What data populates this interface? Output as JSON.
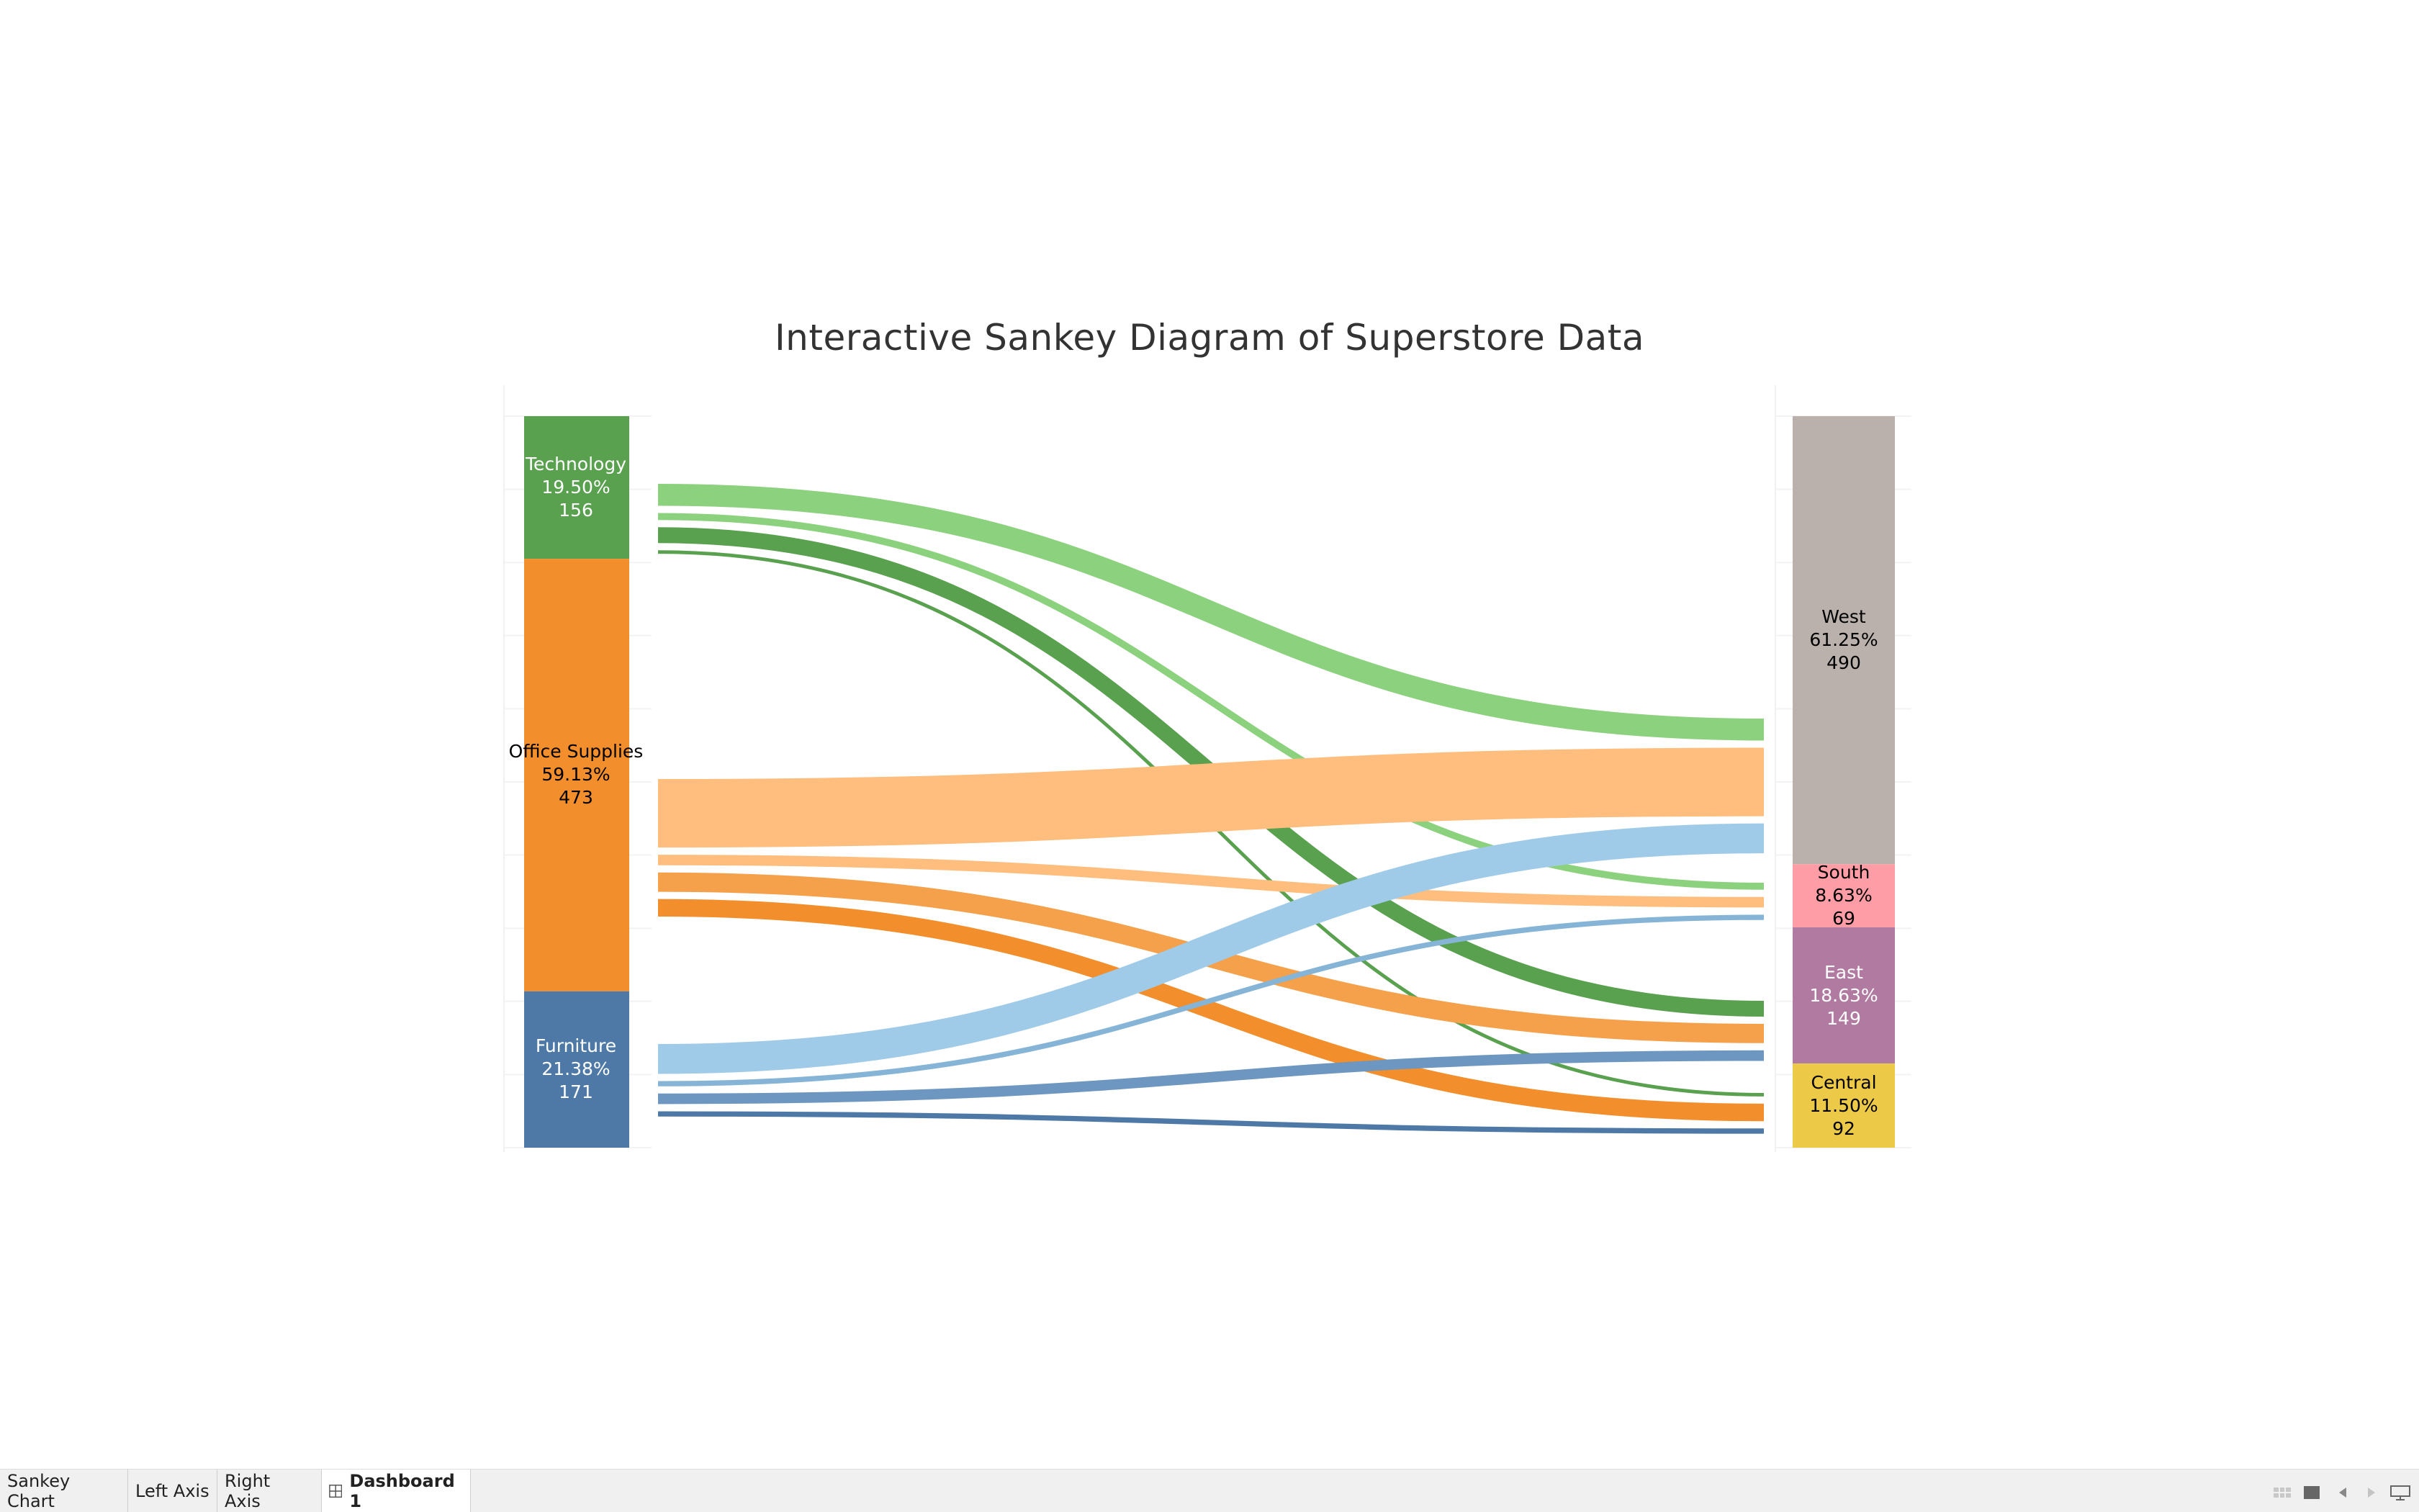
{
  "dashboard": {
    "title": "Interactive Sankey Diagram of Superstore Data"
  },
  "chart_data": {
    "type": "sankey",
    "title": "Interactive Sankey Diagram of Superstore Data",
    "left_nodes": [
      {
        "key": "technology",
        "name": "Technology",
        "percent": "19.50%",
        "count": "156",
        "value": 156,
        "color": "#59a14f",
        "text_color": "#ffffff"
      },
      {
        "key": "office_supplies",
        "name": "Office Supplies",
        "percent": "59.13%",
        "count": "473",
        "value": 473,
        "color": "#f28e2b",
        "text_color": "#000000"
      },
      {
        "key": "furniture",
        "name": "Furniture",
        "percent": "21.38%",
        "count": "171",
        "value": 171,
        "color": "#4e79a7",
        "text_color": "#ffffff"
      }
    ],
    "right_nodes": [
      {
        "key": "west",
        "name": "West",
        "percent": "61.25%",
        "count": "490",
        "value": 490,
        "color": "#bab0ac",
        "text_color": "#000000"
      },
      {
        "key": "south",
        "name": "South",
        "percent": "8.63%",
        "count": "69",
        "value": 69,
        "color": "#ff9da7",
        "text_color": "#000000"
      },
      {
        "key": "east",
        "name": "East",
        "percent": "18.63%",
        "count": "149",
        "value": 149,
        "color": "#b07aa1",
        "text_color": "#ffffff"
      },
      {
        "key": "central",
        "name": "Central",
        "percent": "11.50%",
        "count": "92",
        "value": 92,
        "color": "#edc948",
        "text_color": "#000000"
      }
    ],
    "flows": [
      {
        "source": "technology",
        "target": "west",
        "value": 25,
        "color": "#8cd17d"
      },
      {
        "source": "technology",
        "target": "south",
        "value": 8,
        "color": "#8cd17d"
      },
      {
        "source": "technology",
        "target": "east",
        "value": 18,
        "color": "#59a14f"
      },
      {
        "source": "technology",
        "target": "central",
        "value": 4,
        "color": "#59a14f"
      },
      {
        "source": "office_supplies",
        "target": "west",
        "value": 78,
        "color": "#ffbe7d"
      },
      {
        "source": "office_supplies",
        "target": "south",
        "value": 12,
        "color": "#ffbe7d"
      },
      {
        "source": "office_supplies",
        "target": "east",
        "value": 22,
        "color": "#f5a04a"
      },
      {
        "source": "office_supplies",
        "target": "central",
        "value": 20,
        "color": "#f28e2b"
      },
      {
        "source": "furniture",
        "target": "west",
        "value": 34,
        "color": "#a0cbe8"
      },
      {
        "source": "furniture",
        "target": "south",
        "value": 6,
        "color": "#86b4d6"
      },
      {
        "source": "furniture",
        "target": "east",
        "value": 12,
        "color": "#6d97c0"
      },
      {
        "source": "furniture",
        "target": "central",
        "value": 6,
        "color": "#4e79a7"
      }
    ]
  },
  "tabs": [
    {
      "label": "Sankey Chart",
      "active": false
    },
    {
      "label": "Left Axis",
      "active": false
    },
    {
      "label": "Right Axis",
      "active": false
    },
    {
      "label": "Dashboard 1",
      "active": true,
      "icon": "dashboard-grid-icon"
    }
  ],
  "controls": [
    {
      "icon": "show-sheets-grid-icon"
    },
    {
      "icon": "filmstrip-icon"
    },
    {
      "icon": "previous-sheet-icon"
    },
    {
      "icon": "next-sheet-icon"
    },
    {
      "icon": "presentation-mode-icon"
    }
  ]
}
